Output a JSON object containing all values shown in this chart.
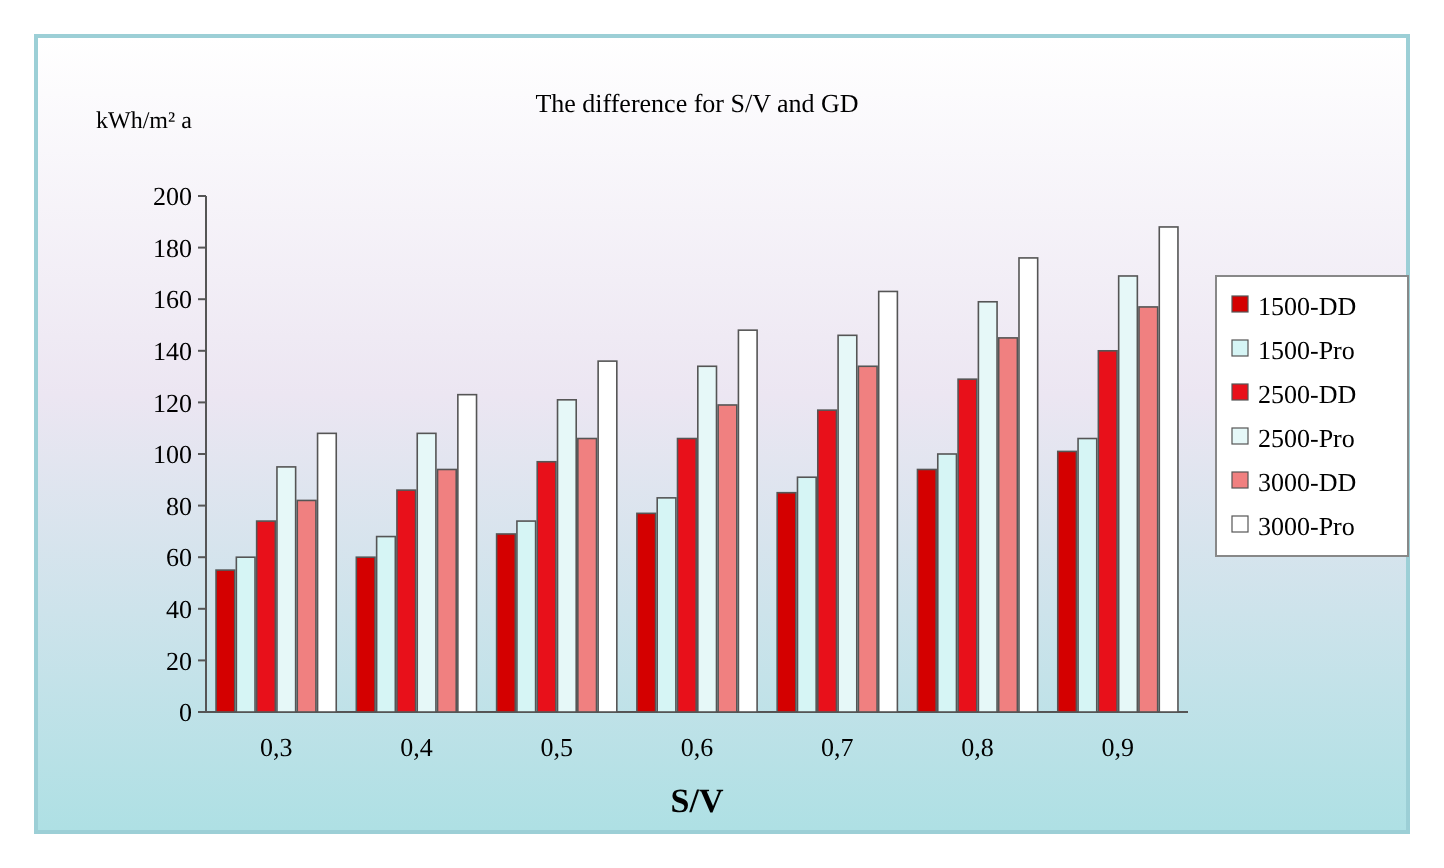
{
  "chart_data": {
    "type": "bar",
    "title": "The difference for  S/V and GD",
    "xlabel": "S/V",
    "ylabel": "kWh/m² a",
    "categories": [
      "0,3",
      "0,4",
      "0,5",
      "0,6",
      "0,7",
      "0,8",
      "0,9"
    ],
    "series": [
      {
        "name": "1500-DD",
        "color": "#d40000",
        "values": [
          55,
          60,
          69,
          77,
          85,
          94,
          101
        ]
      },
      {
        "name": "1500-Pro",
        "color": "#d6f5f5",
        "values": [
          60,
          68,
          74,
          83,
          91,
          100,
          106
        ]
      },
      {
        "name": "2500-DD",
        "color": "#e8101a",
        "values": [
          74,
          86,
          97,
          106,
          117,
          129,
          140
        ]
      },
      {
        "name": "2500-Pro",
        "color": "#e6f8f8",
        "values": [
          95,
          108,
          121,
          134,
          146,
          159,
          169
        ]
      },
      {
        "name": "3000-DD",
        "color": "#f08080",
        "values": [
          82,
          94,
          106,
          119,
          134,
          145,
          157
        ]
      },
      {
        "name": "3000-Pro",
        "color": "#ffffff",
        "values": [
          108,
          123,
          136,
          148,
          163,
          176,
          188
        ]
      }
    ],
    "ylim": [
      0,
      200
    ],
    "yticks": [
      0,
      20,
      40,
      60,
      80,
      100,
      120,
      140,
      160,
      180,
      200
    ],
    "legend": "right"
  }
}
